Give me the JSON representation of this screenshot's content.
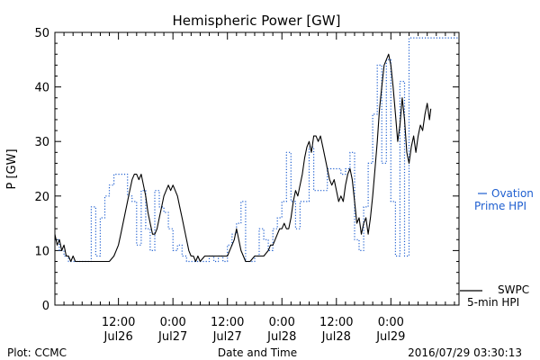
{
  "chart_data": {
    "type": "line",
    "title": "Hemispheric Power [GW]",
    "xlabel": "Date and Time",
    "ylabel": "P [GW]",
    "xlim": [
      -14,
      75
    ],
    "ylim": [
      0,
      50
    ],
    "y_ticks": [
      0,
      10,
      20,
      30,
      40,
      50
    ],
    "x_ticks": [
      {
        "x": 0,
        "time": "12:00",
        "date": "Jul26"
      },
      {
        "x": 12,
        "time": "0:00",
        "date": "Jul27"
      },
      {
        "x": 24,
        "time": "12:00",
        "date": "Jul27"
      },
      {
        "x": 36,
        "time": "0:00",
        "date": "Jul28"
      },
      {
        "x": 48,
        "time": "12:00",
        "date": "Jul28"
      },
      {
        "x": 60,
        "time": "0:00",
        "date": "Jul29"
      }
    ],
    "series": [
      {
        "name": "SWPC 5-min HPI",
        "color": "#000000",
        "style": "solid",
        "points": [
          [
            -14,
            13
          ],
          [
            -13.5,
            11
          ],
          [
            -13,
            12
          ],
          [
            -12.5,
            10
          ],
          [
            -12,
            11
          ],
          [
            -11.5,
            9
          ],
          [
            -11,
            9
          ],
          [
            -10.5,
            8
          ],
          [
            -10,
            9
          ],
          [
            -9.5,
            8
          ],
          [
            -9,
            8
          ],
          [
            -8,
            8
          ],
          [
            -7,
            8
          ],
          [
            -6,
            8
          ],
          [
            -5,
            8
          ],
          [
            -4,
            8
          ],
          [
            -3,
            8
          ],
          [
            -2,
            8
          ],
          [
            -1,
            9
          ],
          [
            0,
            11
          ],
          [
            0.5,
            13
          ],
          [
            1,
            15
          ],
          [
            1.5,
            17
          ],
          [
            2,
            19
          ],
          [
            2.5,
            21
          ],
          [
            3,
            23
          ],
          [
            3.5,
            24
          ],
          [
            4,
            24
          ],
          [
            4.5,
            23
          ],
          [
            5,
            24
          ],
          [
            5.5,
            22
          ],
          [
            6,
            20
          ],
          [
            6.5,
            17
          ],
          [
            7,
            15
          ],
          [
            7.5,
            13
          ],
          [
            8,
            13
          ],
          [
            8.5,
            14
          ],
          [
            9,
            16
          ],
          [
            9.5,
            18
          ],
          [
            10,
            20
          ],
          [
            10.5,
            21
          ],
          [
            11,
            22
          ],
          [
            11.5,
            21
          ],
          [
            12,
            22
          ],
          [
            12.5,
            21
          ],
          [
            13,
            20
          ],
          [
            13.5,
            18
          ],
          [
            14,
            16
          ],
          [
            14.5,
            14
          ],
          [
            15,
            12
          ],
          [
            15.5,
            10
          ],
          [
            16,
            9
          ],
          [
            16.5,
            9
          ],
          [
            17,
            8
          ],
          [
            17.5,
            9
          ],
          [
            18,
            8
          ],
          [
            19,
            9
          ],
          [
            20,
            9
          ],
          [
            21,
            9
          ],
          [
            22,
            9
          ],
          [
            23,
            9
          ],
          [
            24,
            9
          ],
          [
            24.5,
            10
          ],
          [
            25,
            11
          ],
          [
            25.5,
            12
          ],
          [
            26,
            14
          ],
          [
            26.5,
            12
          ],
          [
            27,
            10
          ],
          [
            27.5,
            9
          ],
          [
            28,
            8
          ],
          [
            29,
            8
          ],
          [
            30,
            9
          ],
          [
            31,
            9
          ],
          [
            32,
            9
          ],
          [
            33,
            10
          ],
          [
            33.5,
            11
          ],
          [
            34,
            11
          ],
          [
            34.5,
            12
          ],
          [
            35,
            13
          ],
          [
            35.5,
            14
          ],
          [
            36,
            14
          ],
          [
            36.5,
            15
          ],
          [
            37,
            14
          ],
          [
            37.5,
            14
          ],
          [
            38,
            16
          ],
          [
            38.5,
            19
          ],
          [
            39,
            21
          ],
          [
            39.5,
            20
          ],
          [
            40,
            22
          ],
          [
            40.5,
            24
          ],
          [
            41,
            27
          ],
          [
            41.5,
            29
          ],
          [
            42,
            30
          ],
          [
            42.5,
            28
          ],
          [
            43,
            31
          ],
          [
            43.5,
            31
          ],
          [
            44,
            30
          ],
          [
            44.5,
            31
          ],
          [
            45,
            29
          ],
          [
            45.5,
            27
          ],
          [
            46,
            25
          ],
          [
            46.5,
            23
          ],
          [
            47,
            22
          ],
          [
            47.5,
            23
          ],
          [
            48,
            21
          ],
          [
            48.5,
            19
          ],
          [
            49,
            20
          ],
          [
            49.5,
            19
          ],
          [
            50,
            22
          ],
          [
            50.5,
            24
          ],
          [
            51,
            25
          ],
          [
            51.5,
            23
          ],
          [
            52,
            19
          ],
          [
            52.5,
            15
          ],
          [
            53,
            16
          ],
          [
            53.5,
            13
          ],
          [
            54,
            15
          ],
          [
            54.5,
            16
          ],
          [
            55,
            13
          ],
          [
            55.5,
            16
          ],
          [
            56,
            20
          ],
          [
            56.5,
            25
          ],
          [
            57,
            30
          ],
          [
            57.5,
            36
          ],
          [
            58,
            40
          ],
          [
            58.5,
            44
          ],
          [
            59,
            45
          ],
          [
            59.5,
            46
          ],
          [
            60,
            44
          ],
          [
            60.5,
            40
          ],
          [
            61,
            35
          ],
          [
            61.5,
            30
          ],
          [
            62,
            33
          ],
          [
            62.5,
            38
          ],
          [
            63,
            34
          ],
          [
            63.5,
            28
          ],
          [
            64,
            26
          ],
          [
            64.5,
            29
          ],
          [
            65,
            31
          ],
          [
            65.5,
            28
          ],
          [
            66,
            31
          ],
          [
            66.5,
            33
          ],
          [
            67,
            32
          ],
          [
            67.5,
            35
          ],
          [
            68,
            37
          ],
          [
            68.5,
            34
          ],
          [
            68.8,
            36
          ]
        ]
      },
      {
        "name": "Ovation Prime HPI",
        "color": "#1f5fd0",
        "style": "dotted",
        "points": [
          [
            -14,
            12
          ],
          [
            -13,
            12
          ],
          [
            -13,
            10
          ],
          [
            -12,
            10
          ],
          [
            -12,
            9
          ],
          [
            -11,
            9
          ],
          [
            -11,
            8
          ],
          [
            -8,
            8
          ],
          [
            -8,
            8
          ],
          [
            -6,
            8
          ],
          [
            -6,
            18
          ],
          [
            -5,
            18
          ],
          [
            -5,
            9
          ],
          [
            -4,
            9
          ],
          [
            -4,
            16
          ],
          [
            -3,
            16
          ],
          [
            -3,
            20
          ],
          [
            -2,
            20
          ],
          [
            -2,
            22
          ],
          [
            -1,
            22
          ],
          [
            -1,
            24
          ],
          [
            2,
            24
          ],
          [
            2,
            20
          ],
          [
            3,
            20
          ],
          [
            3,
            19
          ],
          [
            4,
            19
          ],
          [
            4,
            11
          ],
          [
            5,
            11
          ],
          [
            5,
            21
          ],
          [
            6,
            21
          ],
          [
            6,
            14
          ],
          [
            7,
            14
          ],
          [
            7,
            10
          ],
          [
            8,
            10
          ],
          [
            8,
            21
          ],
          [
            9,
            21
          ],
          [
            9,
            18
          ],
          [
            10,
            18
          ],
          [
            10,
            17
          ],
          [
            11,
            17
          ],
          [
            11,
            14
          ],
          [
            12,
            14
          ],
          [
            12,
            10
          ],
          [
            13,
            10
          ],
          [
            13,
            11
          ],
          [
            14,
            11
          ],
          [
            14,
            9
          ],
          [
            15,
            9
          ],
          [
            15,
            8
          ],
          [
            20,
            8
          ],
          [
            20,
            9
          ],
          [
            21,
            9
          ],
          [
            21,
            8
          ],
          [
            22,
            8
          ],
          [
            22,
            9
          ],
          [
            23,
            9
          ],
          [
            23,
            8
          ],
          [
            24,
            8
          ],
          [
            24,
            11
          ],
          [
            25,
            11
          ],
          [
            25,
            13
          ],
          [
            26,
            13
          ],
          [
            26,
            15
          ],
          [
            27,
            15
          ],
          [
            27,
            19
          ],
          [
            28,
            19
          ],
          [
            28,
            8
          ],
          [
            30,
            8
          ],
          [
            30,
            9
          ],
          [
            31,
            9
          ],
          [
            31,
            14
          ],
          [
            32,
            14
          ],
          [
            32,
            12
          ],
          [
            33,
            12
          ],
          [
            33,
            10
          ],
          [
            34,
            10
          ],
          [
            34,
            14
          ],
          [
            35,
            14
          ],
          [
            35,
            16
          ],
          [
            36,
            16
          ],
          [
            36,
            19
          ],
          [
            37,
            19
          ],
          [
            37,
            28
          ],
          [
            38,
            28
          ],
          [
            38,
            19
          ],
          [
            39,
            19
          ],
          [
            39,
            14
          ],
          [
            40,
            14
          ],
          [
            40,
            19
          ],
          [
            41,
            19
          ],
          [
            41,
            19
          ],
          [
            42,
            19
          ],
          [
            42,
            29
          ],
          [
            43,
            29
          ],
          [
            43,
            21
          ],
          [
            46,
            21
          ],
          [
            46,
            25
          ],
          [
            49,
            25
          ],
          [
            49,
            24
          ],
          [
            50,
            24
          ],
          [
            50,
            25
          ],
          [
            51,
            25
          ],
          [
            51,
            28
          ],
          [
            52,
            28
          ],
          [
            52,
            12
          ],
          [
            53,
            12
          ],
          [
            53,
            10
          ],
          [
            54,
            10
          ],
          [
            54,
            18
          ],
          [
            55,
            18
          ],
          [
            55,
            26
          ],
          [
            56,
            26
          ],
          [
            56,
            35
          ],
          [
            57,
            35
          ],
          [
            57,
            44
          ],
          [
            58,
            44
          ],
          [
            58,
            26
          ],
          [
            59,
            26
          ],
          [
            59,
            45
          ],
          [
            60,
            45
          ],
          [
            60,
            19
          ],
          [
            61,
            19
          ],
          [
            61,
            9
          ],
          [
            62,
            9
          ],
          [
            62,
            41
          ],
          [
            63,
            41
          ],
          [
            63,
            9
          ],
          [
            64,
            9
          ],
          [
            64,
            49
          ],
          [
            75,
            49
          ]
        ]
      }
    ],
    "legend": [
      {
        "series": "Ovation Prime HPI",
        "line1": "Ovation",
        "line2": "Prime HPI",
        "position": "right-middle"
      },
      {
        "series": "SWPC 5-min HPI",
        "line1": "SWPC",
        "line2": "5-min HPI",
        "position": "right-bottom"
      }
    ]
  },
  "footer": {
    "left": "Plot: CCMC",
    "center": "Date and Time",
    "right": "2016/07/29 03:30:13"
  }
}
